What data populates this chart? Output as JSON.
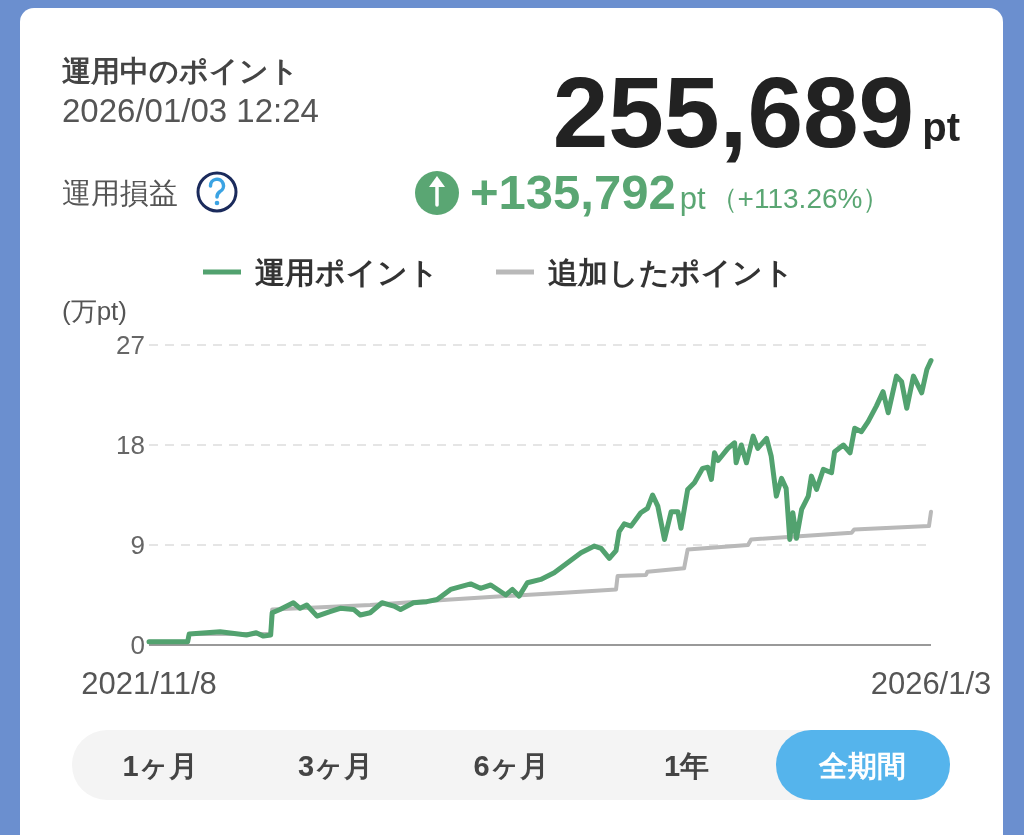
{
  "chart_data": {
    "type": "line",
    "title": "運用中のポイント",
    "subtitle": "2026/01/03 12:24",
    "ylabel": "(万pt)",
    "annotations": [
      "255,689",
      "pt",
      "運用損益",
      "+135,792",
      "pt",
      "（+113.26%）",
      "1ヶ月",
      "3ヶ月",
      "6ヶ月",
      "1年",
      "全期間"
    ],
    "xlim": [
      "2021-11-08",
      "2026-01-03"
    ],
    "xticks": [
      {
        "value": "2021-11-08",
        "label": "2021/11/8"
      },
      {
        "value": "2026-01-03",
        "label": "2026/1/3"
      }
    ],
    "ylim": [
      0,
      27
    ],
    "yticks": [
      0,
      9,
      18,
      27
    ],
    "grid": "y",
    "legend": "top",
    "series": [
      {
        "name": "運用ポイント",
        "color": "#52a26f",
        "x": [
          "2021-11-08",
          "2022-01-22",
          "2022-01-25",
          "2022-03-26",
          "2022-05-16",
          "2022-06-04",
          "2022-06-18",
          "2022-07-02",
          "2022-07-05",
          "2022-07-20",
          "2022-08-15",
          "2022-08-28",
          "2022-09-10",
          "2022-09-30",
          "2022-10-25",
          "2022-11-14",
          "2022-12-10",
          "2022-12-23",
          "2023-01-11",
          "2023-02-03",
          "2023-02-26",
          "2023-03-11",
          "2023-04-05",
          "2023-05-01",
          "2023-05-21",
          "2023-06-16",
          "2023-07-25",
          "2023-08-13",
          "2023-09-02",
          "2023-10-01",
          "2023-10-14",
          "2023-10-27",
          "2023-11-12",
          "2023-12-08",
          "2024-01-03",
          "2024-01-29",
          "2024-02-24",
          "2024-03-21",
          "2024-04-03",
          "2024-04-19",
          "2024-05-02",
          "2024-05-08",
          "2024-05-18",
          "2024-05-31",
          "2024-06-19",
          "2024-07-02",
          "2024-07-12",
          "2024-07-22",
          "2024-08-04",
          "2024-08-17",
          "2024-08-30",
          "2024-09-05",
          "2024-09-18",
          "2024-10-01",
          "2024-10-17",
          "2024-10-27",
          "2024-11-03",
          "2024-11-09",
          "2024-11-16",
          "2024-12-05",
          "2024-12-18",
          "2024-12-21",
          "2024-12-31",
          "2025-01-10",
          "2025-01-23",
          "2025-02-01",
          "2025-02-18",
          "2025-02-27",
          "2025-03-09",
          "2025-03-19",
          "2025-03-28",
          "2025-04-04",
          "2025-04-10",
          "2025-04-17",
          "2025-04-27",
          "2025-05-10",
          "2025-05-16",
          "2025-05-26",
          "2025-06-08",
          "2025-06-24",
          "2025-06-30",
          "2025-07-17",
          "2025-07-30",
          "2025-08-08",
          "2025-08-21",
          "2025-09-03",
          "2025-09-19",
          "2025-10-02",
          "2025-10-12",
          "2025-10-28",
          "2025-11-07",
          "2025-11-17",
          "2025-11-30",
          "2025-12-16",
          "2025-12-26",
          "2026-01-03"
        ],
        "values": [
          0.3,
          0.3,
          1.0,
          1.2,
          0.9,
          1.1,
          0.8,
          0.9,
          2.9,
          3.2,
          3.8,
          3.3,
          3.6,
          2.6,
          3.0,
          3.3,
          3.2,
          2.7,
          2.9,
          3.8,
          3.5,
          3.2,
          3.8,
          3.9,
          4.1,
          5.0,
          5.5,
          5.1,
          5.4,
          4.5,
          5.0,
          4.4,
          5.6,
          5.9,
          6.5,
          7.4,
          8.3,
          8.9,
          8.7,
          7.8,
          8.5,
          10.2,
          10.9,
          10.7,
          11.9,
          12.3,
          13.5,
          12.5,
          9.5,
          12.0,
          12.0,
          10.5,
          14.0,
          14.6,
          15.9,
          16.0,
          14.9,
          17.3,
          16.6,
          17.7,
          18.2,
          16.4,
          18.0,
          16.4,
          18.8,
          17.7,
          18.6,
          17.0,
          13.4,
          15.0,
          14.1,
          9.5,
          11.9,
          9.6,
          12.2,
          13.4,
          15.2,
          14.0,
          15.8,
          15.5,
          17.4,
          18.0,
          17.3,
          19.5,
          19.2,
          20.1,
          21.5,
          22.8,
          20.9,
          24.2,
          23.7,
          21.3,
          24.2,
          22.7,
          24.8,
          25.6
        ]
      },
      {
        "name": "追加したポイント",
        "color": "#b9b9b9",
        "x": [
          "2021-11-08",
          "2022-01-22",
          "2022-01-25",
          "2022-07-02",
          "2022-07-05",
          "2023-01-11",
          "2023-06-16",
          "2023-10-01",
          "2024-01-22",
          "2024-05-02",
          "2024-05-05",
          "2024-06-29",
          "2024-07-02",
          "2024-09-11",
          "2024-09-18",
          "2025-01-13",
          "2025-01-19",
          "2025-08-02",
          "2025-08-07",
          "2025-12-30",
          "2026-01-03"
        ],
        "values": [
          0.3,
          0.3,
          1.0,
          1.0,
          3.2,
          3.6,
          4.1,
          4.4,
          4.7,
          5.0,
          6.2,
          6.3,
          6.6,
          6.9,
          8.6,
          9.0,
          9.5,
          10.1,
          10.4,
          10.7,
          12.0
        ]
      }
    ]
  }
}
